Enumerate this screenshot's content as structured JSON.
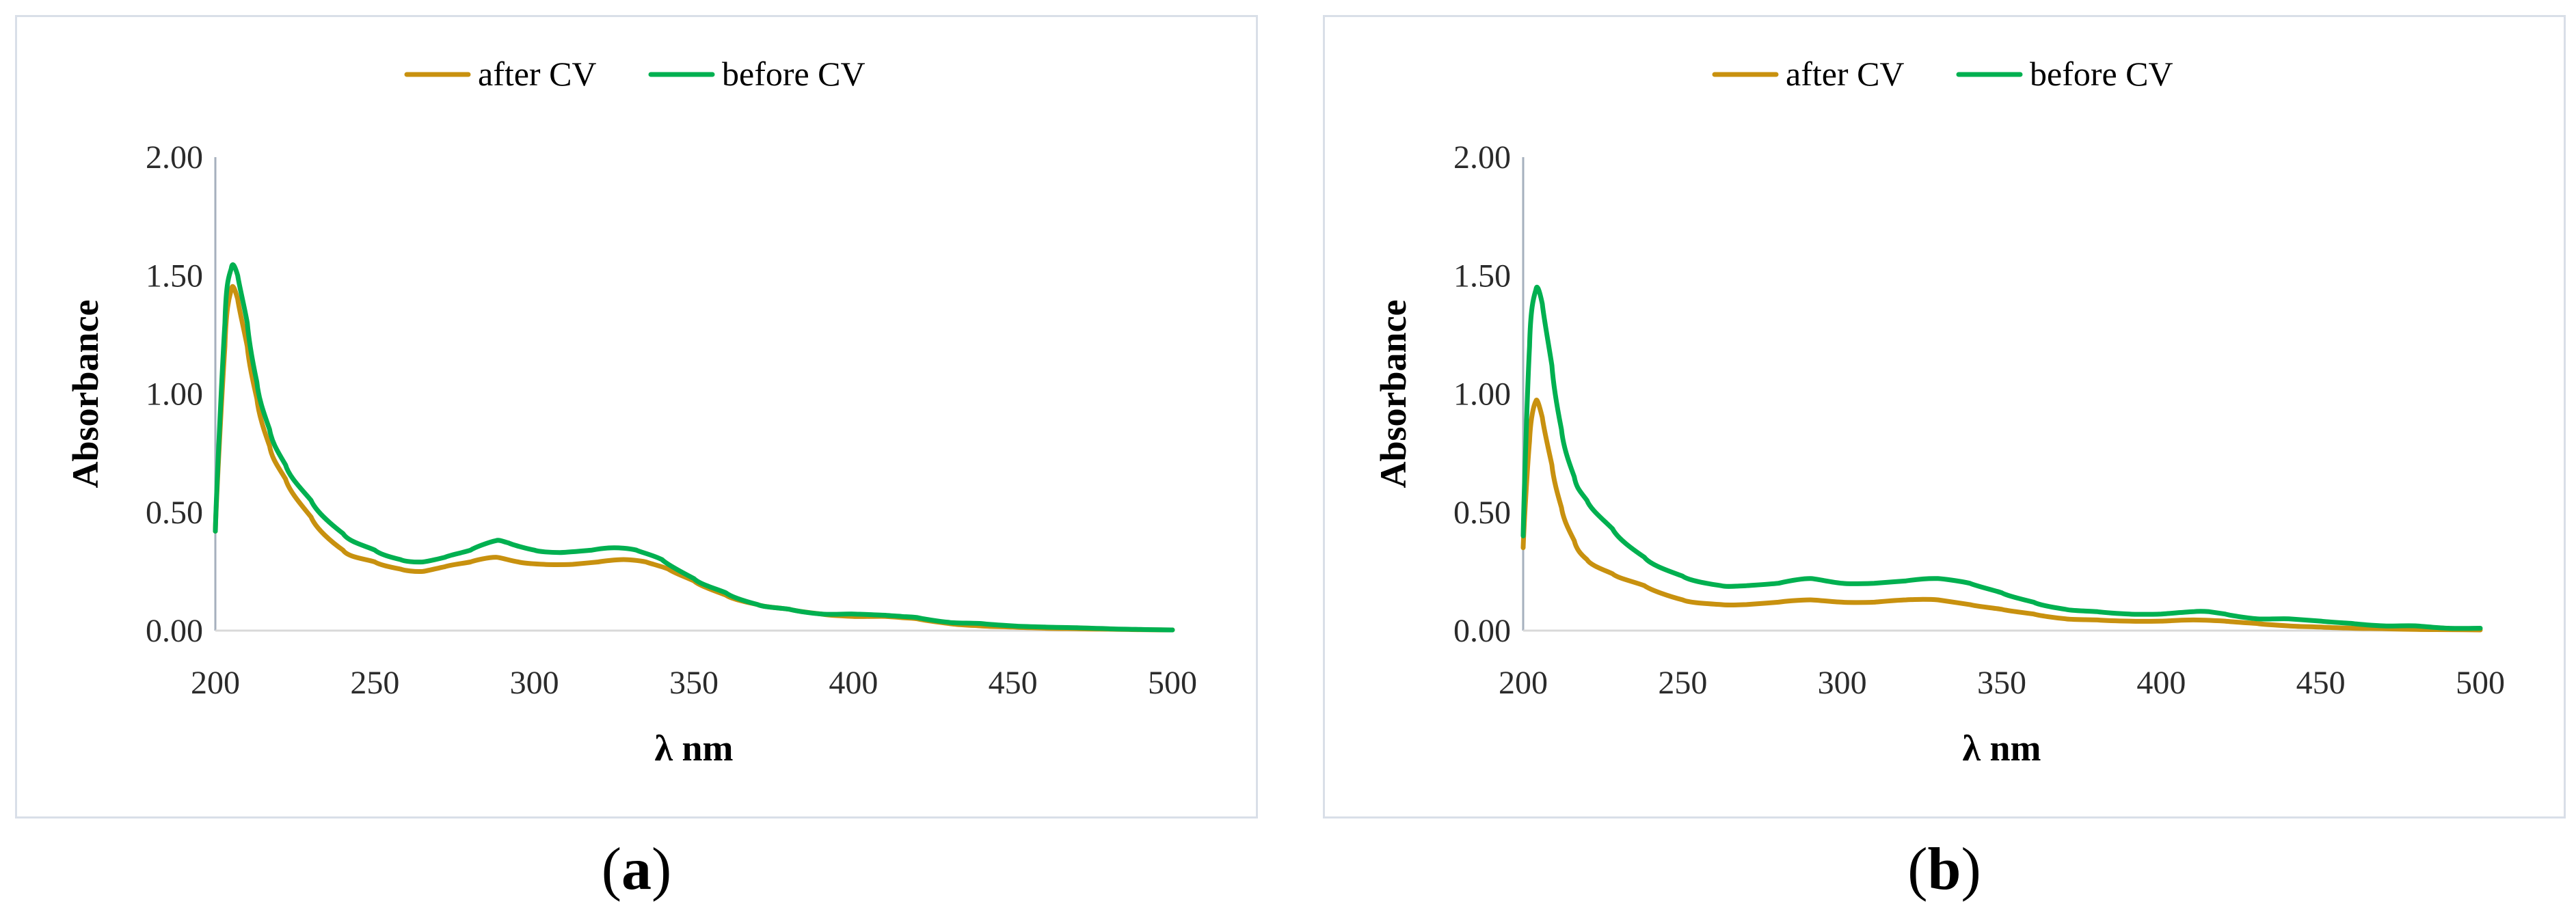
{
  "chart_data": [
    {
      "type": "line",
      "panel_label": "a",
      "xlabel": "λ nm",
      "ylabel": "Absorbance",
      "xlim": [
        200,
        500
      ],
      "ylim": [
        0,
        2
      ],
      "xticks": [
        "200",
        "250",
        "300",
        "350",
        "400",
        "450",
        "500"
      ],
      "yticks": [
        "0.00",
        "0.50",
        "1.00",
        "1.50",
        "2.00"
      ],
      "legend_position": "top-center",
      "series": [
        {
          "name": "after CV",
          "color": "#c8910f",
          "x": [
            200,
            203,
            205,
            207,
            210,
            213,
            217,
            222,
            230,
            240,
            250,
            258,
            265,
            272,
            280,
            288,
            295,
            303,
            312,
            320,
            328,
            335,
            342,
            350,
            360,
            370,
            380,
            390,
            400,
            410,
            415,
            420,
            430,
            440,
            450,
            460,
            470,
            480,
            490,
            500
          ],
          "values": [
            0.42,
            1.2,
            1.44,
            1.4,
            1.2,
            0.98,
            0.78,
            0.64,
            0.48,
            0.34,
            0.29,
            0.26,
            0.25,
            0.27,
            0.29,
            0.31,
            0.29,
            0.28,
            0.28,
            0.29,
            0.3,
            0.29,
            0.26,
            0.21,
            0.15,
            0.11,
            0.09,
            0.07,
            0.06,
            0.06,
            0.055,
            0.05,
            0.03,
            0.02,
            0.015,
            0.01,
            0.008,
            0.006,
            0.004,
            0.003
          ]
        },
        {
          "name": "before CV",
          "color": "#00b050",
          "x": [
            200,
            203,
            205,
            207,
            210,
            213,
            217,
            222,
            230,
            240,
            250,
            258,
            265,
            272,
            280,
            288,
            292,
            300,
            308,
            318,
            325,
            332,
            340,
            350,
            360,
            370,
            380,
            390,
            400,
            410,
            415,
            420,
            430,
            440,
            450,
            460,
            470,
            480,
            490,
            500
          ],
          "values": [
            0.42,
            1.3,
            1.53,
            1.5,
            1.3,
            1.05,
            0.85,
            0.7,
            0.55,
            0.41,
            0.34,
            0.3,
            0.29,
            0.31,
            0.34,
            0.38,
            0.37,
            0.34,
            0.33,
            0.34,
            0.35,
            0.34,
            0.3,
            0.22,
            0.16,
            0.11,
            0.09,
            0.07,
            0.07,
            0.065,
            0.06,
            0.055,
            0.035,
            0.03,
            0.02,
            0.015,
            0.012,
            0.008,
            0.005,
            0.003
          ]
        }
      ]
    },
    {
      "type": "line",
      "panel_label": "b",
      "xlabel": "λ nm",
      "ylabel": "Absorbance",
      "xlim": [
        200,
        500
      ],
      "ylim": [
        0,
        2
      ],
      "xticks": [
        "200",
        "250",
        "300",
        "350",
        "400",
        "450",
        "500"
      ],
      "yticks": [
        "0.00",
        "0.50",
        "1.00",
        "1.50",
        "2.00"
      ],
      "legend_position": "top-center",
      "series": [
        {
          "name": "after CV",
          "color": "#c8910f",
          "x": [
            200,
            202,
            204,
            206,
            209,
            212,
            216,
            220,
            228,
            238,
            250,
            262,
            270,
            280,
            290,
            300,
            310,
            320,
            330,
            340,
            350,
            360,
            370,
            380,
            390,
            400,
            410,
            420,
            430,
            440,
            450,
            460,
            470,
            480,
            490,
            500
          ],
          "values": [
            0.35,
            0.8,
            0.97,
            0.9,
            0.7,
            0.52,
            0.38,
            0.3,
            0.24,
            0.19,
            0.13,
            0.11,
            0.11,
            0.12,
            0.13,
            0.12,
            0.12,
            0.13,
            0.13,
            0.11,
            0.09,
            0.07,
            0.05,
            0.045,
            0.04,
            0.04,
            0.045,
            0.04,
            0.03,
            0.02,
            0.015,
            0.01,
            0.008,
            0.005,
            0.004,
            0.003
          ]
        },
        {
          "name": "before CV",
          "color": "#00b050",
          "x": [
            200,
            202,
            204,
            206,
            209,
            212,
            216,
            220,
            228,
            238,
            250,
            262,
            270,
            280,
            290,
            300,
            310,
            320,
            330,
            340,
            350,
            360,
            370,
            380,
            390,
            400,
            410,
            415,
            420,
            430,
            440,
            450,
            460,
            470,
            480,
            490,
            500
          ],
          "values": [
            0.4,
            1.2,
            1.44,
            1.38,
            1.12,
            0.85,
            0.65,
            0.55,
            0.43,
            0.31,
            0.23,
            0.19,
            0.19,
            0.2,
            0.22,
            0.2,
            0.2,
            0.21,
            0.22,
            0.2,
            0.16,
            0.12,
            0.09,
            0.08,
            0.07,
            0.07,
            0.08,
            0.08,
            0.07,
            0.05,
            0.05,
            0.04,
            0.03,
            0.02,
            0.02,
            0.01,
            0.01
          ]
        }
      ]
    }
  ]
}
